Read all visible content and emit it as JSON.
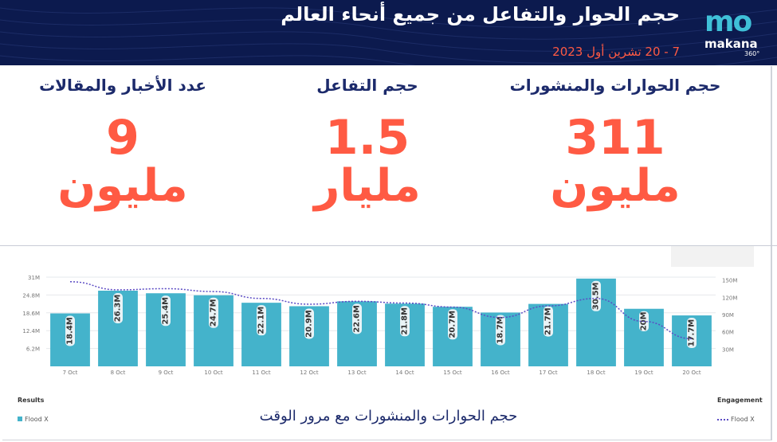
{
  "header": {
    "title": "حجم الحوار والتفاعل من جميع أنحاء العالم",
    "date": "7 - 20 تشرين أول 2023",
    "logo_mark": "mo",
    "logo_name": "makana",
    "logo_sub": "360°"
  },
  "kpis": [
    {
      "title": "حجم الحوارات والمنشورات",
      "value": "311",
      "unit": "مليون"
    },
    {
      "title": "حجم التفاعل",
      "value": "1.5",
      "unit": "مليار"
    },
    {
      "title": "عدد الأخبار والمقالات",
      "value": "9",
      "unit": "مليون"
    }
  ],
  "colors": {
    "header_bg": "#0c1a4e",
    "accent_orange": "#ff5a43",
    "bar": "#44b3cb",
    "line": "#5b4bc4",
    "navy_text": "#1c2a6b"
  },
  "chart_data": {
    "type": "bar",
    "categories": [
      "7 Oct",
      "8 Oct",
      "9 Oct",
      "10 Oct",
      "11 Oct",
      "12 Oct",
      "13 Oct",
      "14 Oct",
      "15 Oct",
      "16 Oct",
      "17 Oct",
      "18 Oct",
      "19 Oct",
      "20 Oct"
    ],
    "series": [
      {
        "name": "Flood X",
        "axis": "left",
        "type": "bar",
        "values": [
          18.4,
          26.3,
          25.4,
          24.7,
          22.1,
          20.9,
          22.6,
          21.8,
          20.7,
          18.7,
          21.7,
          30.5,
          20.0,
          17.7
        ],
        "labels": [
          "18.4M",
          "26.3M",
          "25.4M",
          "24.7M",
          "22.1M",
          "20.9M",
          "22.6M",
          "21.8M",
          "20.7M",
          "18.7M",
          "21.7M",
          "30.5M",
          "20M",
          "17.7M"
        ]
      },
      {
        "name": "Flood X",
        "axis": "right",
        "type": "line",
        "style": "dotted",
        "values": [
          147,
          133,
          135,
          130,
          118,
          108,
          113,
          110,
          103,
          85,
          105,
          118,
          78,
          48
        ]
      }
    ],
    "left_axis": {
      "ticks": [
        "6.2M",
        "12.4M",
        "18.6M",
        "24.8M",
        "31M"
      ],
      "tick_values": [
        6.2,
        12.4,
        18.6,
        24.8,
        31
      ],
      "ylim": [
        0,
        31
      ]
    },
    "right_axis": {
      "ticks": [
        "30M",
        "60M",
        "90M",
        "120M",
        "150M"
      ],
      "tick_values": [
        30,
        60,
        90,
        120,
        150
      ],
      "ylim": [
        0,
        155
      ]
    },
    "legend_left_title": "Results",
    "legend_right_title": "Engagement",
    "caption": "حجم الحوارات والمنشورات مع مرور الوقت",
    "grid": true
  }
}
